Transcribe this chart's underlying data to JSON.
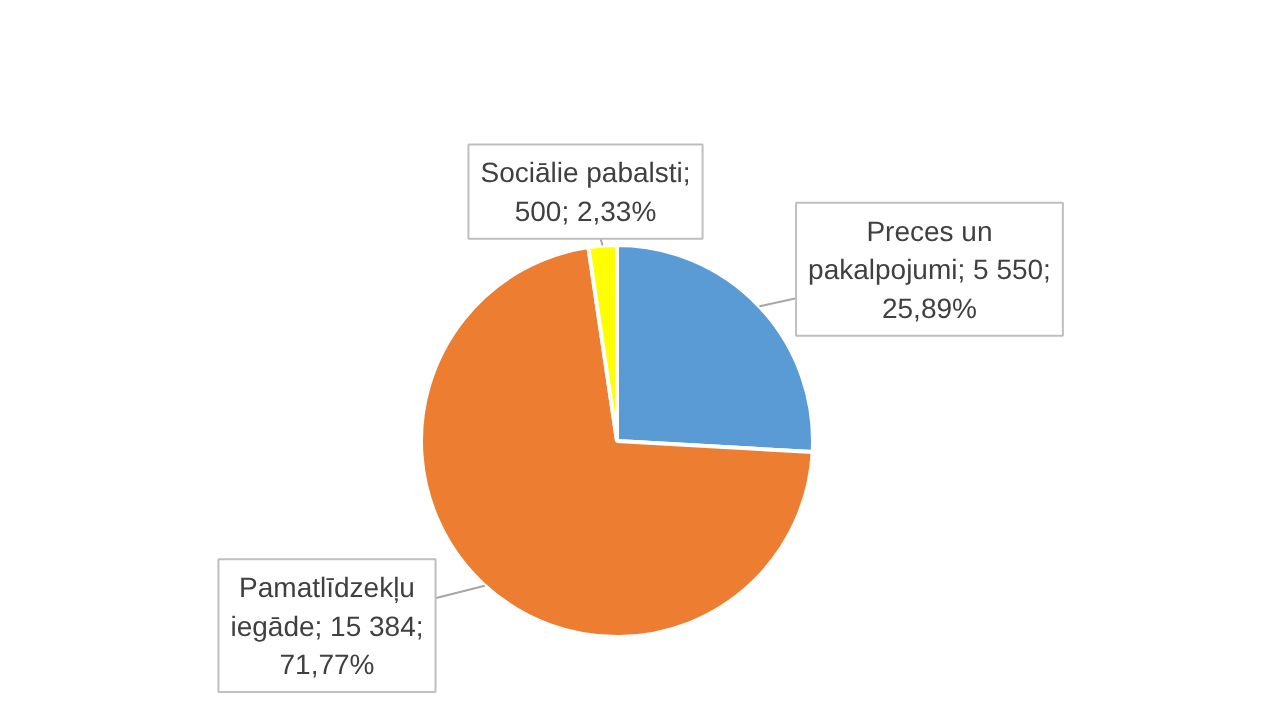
{
  "chart_data": {
    "type": "pie",
    "categories": [
      "Preces un pakalpojumi",
      "Pamatlīdzekļu iegāde",
      "Sociālie pabalsti"
    ],
    "values": [
      5550,
      15384,
      500
    ],
    "colors": [
      "#5b9bd5",
      "#ed7d31",
      "#ffff00"
    ],
    "value_labels": [
      "; 5 550; 25,89%",
      "; 15 384; 71,77%",
      "; 500; 2,33%"
    ]
  }
}
